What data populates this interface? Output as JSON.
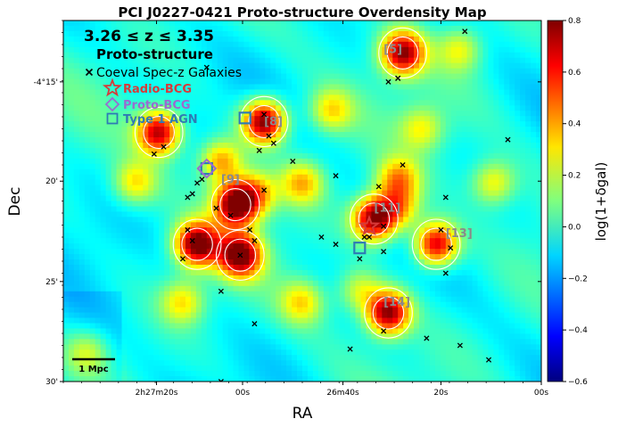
{
  "chart_data": {
    "type": "heatmap",
    "title": "PCI J0227-0421 Proto-structure Overdensity Map",
    "xlabel": "RA",
    "ylabel": "Dec",
    "colorbar_label": "log(1+δgal)",
    "colorbar_range": [
      -0.6,
      0.8
    ],
    "colorbar_ticks": [
      "0.8",
      "0.6",
      "0.4",
      "0.2",
      "0.0",
      "−0.2",
      "−0.4",
      "−0.6"
    ],
    "x_ticks": [
      "2h27m20s",
      "00s",
      "26m40s",
      "20s",
      "00s"
    ],
    "y_ticks": [
      "-4°15'",
      "20'",
      "25'",
      "30'"
    ],
    "legend": {
      "redshift": "3.26 ≤ z ≤ 3.35",
      "heading": "Proto-structure",
      "entries": [
        {
          "marker": "x",
          "label": "Coeval Spec-z Galaxies",
          "color": "#000000"
        },
        {
          "marker": "star",
          "label": "Radio-BCG",
          "color": "#d63a3a"
        },
        {
          "marker": "diamond",
          "label": "Proto-BCG",
          "color": "#9a6bcf"
        },
        {
          "marker": "square",
          "label": "Type 1 AGN",
          "color": "#2e7bb5"
        }
      ]
    },
    "scalebar": "1 Mpc",
    "blobs": [
      {
        "x": 0.42,
        "y": 0.72,
        "v": 0.8
      },
      {
        "x": 0.28,
        "y": 0.38,
        "v": 0.78
      },
      {
        "x": 0.36,
        "y": 0.49,
        "v": 0.75
      },
      {
        "x": 0.2,
        "y": 0.69,
        "v": 0.7
      },
      {
        "x": 0.37,
        "y": 0.35,
        "v": 0.75
      },
      {
        "x": 0.71,
        "y": 0.91,
        "v": 0.7
      },
      {
        "x": 0.65,
        "y": 0.45,
        "v": 0.75
      },
      {
        "x": 0.78,
        "y": 0.38,
        "v": 0.7
      },
      {
        "x": 0.68,
        "y": 0.19,
        "v": 0.75
      },
      {
        "x": 0.7,
        "y": 0.56,
        "v": 0.35
      },
      {
        "x": 0.5,
        "y": 0.55,
        "v": 0.3
      },
      {
        "x": 0.33,
        "y": 0.61,
        "v": 0.4
      },
      {
        "x": 0.4,
        "y": 0.52,
        "v": 0.35
      },
      {
        "x": 0.5,
        "y": 0.22,
        "v": 0.25
      },
      {
        "x": 0.25,
        "y": 0.22,
        "v": 0.25
      },
      {
        "x": 0.15,
        "y": 0.55,
        "v": 0.25
      },
      {
        "x": 0.9,
        "y": 0.55,
        "v": 0.25
      },
      {
        "x": 0.56,
        "y": 0.75,
        "v": 0.25
      },
      {
        "x": 0.62,
        "y": 0.25,
        "v": 0.2
      },
      {
        "x": 0.83,
        "y": 0.92,
        "v": 0.2
      },
      {
        "x": 0.05,
        "y": 0.08,
        "v": 0.15
      },
      {
        "x": 0.75,
        "y": 0.7,
        "v": 0.2
      },
      {
        "x": 0.7,
        "y": 0.48,
        "v": 0.35
      }
    ],
    "labeled_structures": [
      {
        "label": "[5]",
        "x": 0.67,
        "y": 0.91
      },
      {
        "label": "[8]",
        "x": 0.42,
        "y": 0.71
      },
      {
        "label": "[9]",
        "x": 0.33,
        "y": 0.55
      },
      {
        "label": "[11]",
        "x": 0.65,
        "y": 0.47
      },
      {
        "label": "[13]",
        "x": 0.8,
        "y": 0.4
      },
      {
        "label": "[14]",
        "x": 0.67,
        "y": 0.21
      }
    ],
    "galaxies": [
      [
        0.84,
        0.97
      ],
      [
        0.68,
        0.83
      ],
      [
        0.7,
        0.84
      ],
      [
        0.7,
        0.84
      ],
      [
        0.3,
        0.87
      ],
      [
        0.42,
        0.74
      ],
      [
        0.44,
        0.66
      ],
      [
        0.43,
        0.68
      ],
      [
        0.19,
        0.63
      ],
      [
        0.21,
        0.65
      ],
      [
        0.48,
        0.61
      ],
      [
        0.42,
        0.53
      ],
      [
        0.27,
        0.52
      ],
      [
        0.28,
        0.55
      ],
      [
        0.29,
        0.56
      ],
      [
        0.26,
        0.51
      ],
      [
        0.32,
        0.48
      ],
      [
        0.35,
        0.46
      ],
      [
        0.39,
        0.42
      ],
      [
        0.26,
        0.42
      ],
      [
        0.27,
        0.39
      ],
      [
        0.25,
        0.34
      ],
      [
        0.37,
        0.35
      ],
      [
        0.4,
        0.39
      ],
      [
        0.63,
        0.4
      ],
      [
        0.54,
        0.4
      ],
      [
        0.57,
        0.38
      ],
      [
        0.66,
        0.54
      ],
      [
        0.57,
        0.57
      ],
      [
        0.67,
        0.43
      ],
      [
        0.71,
        0.6
      ],
      [
        0.93,
        0.67
      ],
      [
        0.79,
        0.42
      ],
      [
        0.8,
        0.3
      ],
      [
        0.8,
        0.51
      ],
      [
        0.67,
        0.36
      ],
      [
        0.33,
        0.25
      ],
      [
        0.4,
        0.16
      ],
      [
        0.67,
        0.14
      ],
      [
        0.6,
        0.09
      ],
      [
        0.76,
        0.12
      ],
      [
        0.83,
        0.1
      ],
      [
        0.89,
        0.06
      ],
      [
        0.33,
        0.0
      ],
      [
        0.62,
        0.34
      ],
      [
        0.41,
        0.64
      ],
      [
        0.64,
        0.4
      ],
      [
        0.81,
        0.37
      ]
    ],
    "radio_bcg": [
      [
        0.64,
        0.43
      ]
    ],
    "proto_bcg": [
      [
        0.3,
        0.59
      ]
    ],
    "agn": [
      [
        0.38,
        0.73
      ],
      [
        0.62,
        0.37
      ],
      [
        0.3,
        0.59
      ]
    ]
  }
}
